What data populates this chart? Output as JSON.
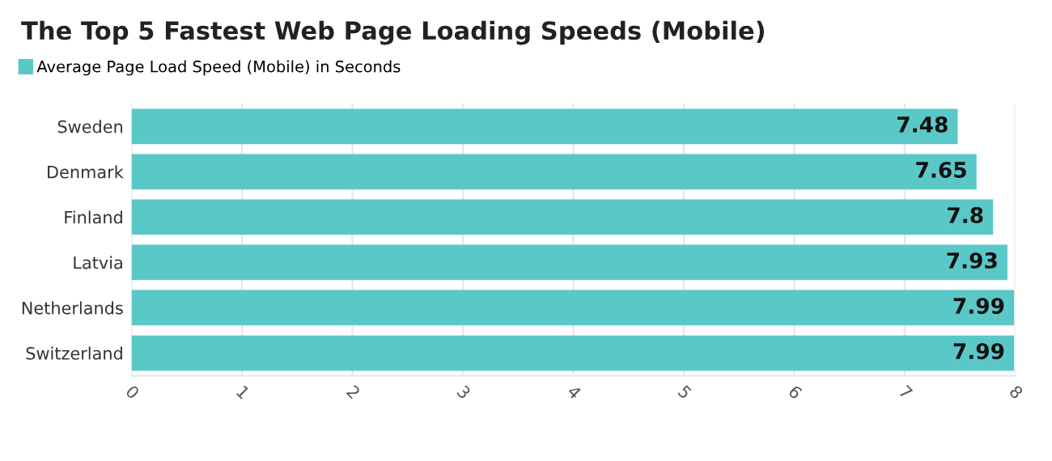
{
  "chart_data": {
    "type": "bar",
    "orientation": "horizontal",
    "title": "The Top 5 Fastest Web Page Loading Speeds (Mobile)",
    "categories": [
      "Sweden",
      "Denmark",
      "Finland",
      "Latvia",
      "Netherlands",
      "Switzerland"
    ],
    "series": [
      {
        "name": "Average Page Load Speed (Mobile) in Seconds",
        "color": "#5bc8c8",
        "values": [
          7.48,
          7.65,
          7.8,
          7.93,
          7.99,
          7.99
        ]
      }
    ],
    "data_labels": true,
    "xlim": [
      0,
      8
    ],
    "xticks": [
      0,
      1,
      2,
      3,
      4,
      5,
      6,
      7,
      8
    ],
    "grid": "x",
    "legend": "top left"
  }
}
